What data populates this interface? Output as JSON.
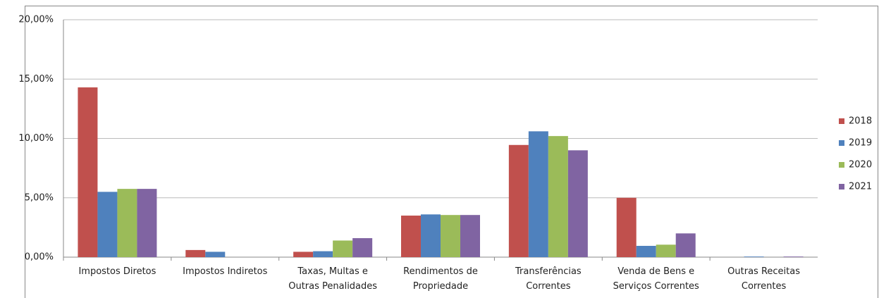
{
  "chart_data": {
    "type": "bar",
    "categories": [
      "Impostos Diretos",
      "Impostos Indiretos",
      "Taxas, Multas e Outras Penalidades",
      "Rendimentos de Propriedade",
      "Transferências Correntes",
      "Venda de Bens e Serviços Correntes",
      "Outras Receitas Correntes"
    ],
    "series": [
      {
        "name": "2018",
        "color": "#c0504d",
        "values": [
          14.3,
          0.6,
          0.45,
          3.5,
          9.45,
          5.0,
          0
        ]
      },
      {
        "name": "2019",
        "color": "#4f81bd",
        "values": [
          5.5,
          0.45,
          0.5,
          3.6,
          10.6,
          0.95,
          0.05
        ]
      },
      {
        "name": "2020",
        "color": "#9bbb59",
        "values": [
          5.75,
          0,
          1.4,
          3.55,
          10.2,
          1.05,
          0
        ]
      },
      {
        "name": "2021",
        "color": "#8064a2",
        "values": [
          5.75,
          0,
          1.6,
          3.55,
          9.0,
          2.0,
          0.05
        ]
      }
    ],
    "ylim": [
      0,
      20
    ],
    "yticks": [
      {
        "value": 0,
        "label": "0,00%"
      },
      {
        "value": 5,
        "label": "5,00%"
      },
      {
        "value": 10,
        "label": "10,00%"
      },
      {
        "value": 15,
        "label": "15,00%"
      },
      {
        "value": 20,
        "label": "20,00%"
      }
    ],
    "grid": true,
    "legend": "right"
  }
}
